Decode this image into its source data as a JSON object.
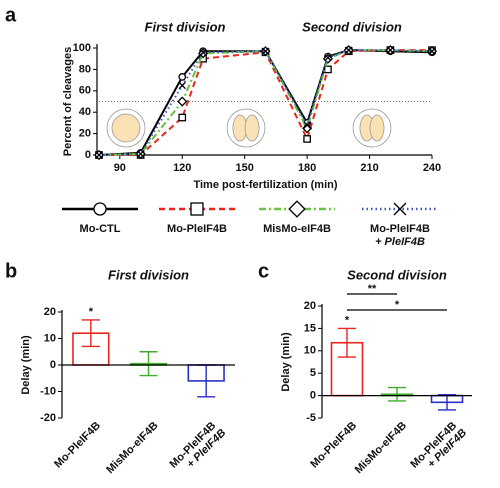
{
  "chart_data": [
    {
      "type": "line",
      "panel": "a",
      "subtitles": [
        "First division",
        "Second division"
      ],
      "xlabel": "Time post-fertilization (min)",
      "ylabel": "Percent of cleavages",
      "x": [
        80,
        100,
        120,
        130,
        160,
        180,
        190,
        200,
        220,
        240
      ],
      "xlim": [
        80,
        240
      ],
      "xticks": [
        90,
        120,
        150,
        180,
        210,
        240
      ],
      "ylim": [
        0,
        100
      ],
      "yticks": [
        0,
        20,
        40,
        60,
        80,
        100
      ],
      "reference_line": 50,
      "series": [
        {
          "name": "Mo-CTL",
          "color": "#000000",
          "style": "solid",
          "marker": "circle",
          "values": [
            0,
            2,
            73,
            97,
            97,
            30,
            92,
            98,
            97,
            96
          ]
        },
        {
          "name": "Mo-PleIF4B",
          "color": "#e8251f",
          "style": "dashed",
          "marker": "square",
          "values": [
            0,
            0,
            35,
            90,
            96,
            15,
            80,
            97,
            98,
            98
          ]
        },
        {
          "name": "MisMo-eIF4B",
          "color": "#6ac33e",
          "style": "dashdot",
          "marker": "diamond",
          "values": [
            0,
            1,
            50,
            95,
            97,
            25,
            90,
            98,
            98,
            97
          ]
        },
        {
          "name": "Mo-PleIF4B + PleIF4B",
          "color": "#3b55c8",
          "style": "dotted",
          "marker": "x",
          "values": [
            0,
            1,
            65,
            96,
            97,
            28,
            91,
            98,
            98,
            97
          ]
        }
      ]
    },
    {
      "type": "bar",
      "panel": "b",
      "title": "First division",
      "ylabel": "Delay (min)",
      "categories": [
        "Mo-PleIF4B",
        "MisMo-eIF4B",
        "Mo-PleIF4B + PleIF4B"
      ],
      "values": [
        12,
        0.5,
        -6
      ],
      "errors": [
        5,
        4.5,
        6
      ],
      "colors": [
        "#e8251f",
        "#3fae2a",
        "#2a2fc8"
      ],
      "ylim": [
        -20,
        20
      ],
      "yticks": [
        -20,
        -10,
        0,
        10,
        20
      ],
      "annotations": [
        "*"
      ]
    },
    {
      "type": "bar",
      "panel": "c",
      "title": "Second division",
      "ylabel": "Delay (min)",
      "categories": [
        "Mo-PleIF4B",
        "MisMo-eIF4B",
        "Mo-PleIF4B + PleIF4B"
      ],
      "values": [
        11.8,
        0.3,
        -1.5
      ],
      "errors": [
        3.2,
        1.5,
        1.7
      ],
      "colors": [
        "#e8251f",
        "#3fae2a",
        "#2a2fc8"
      ],
      "ylim": [
        -5,
        20
      ],
      "yticks": [
        -5,
        0,
        5,
        10,
        15,
        20
      ],
      "annotations": [
        "*",
        "**",
        "*"
      ]
    }
  ]
}
